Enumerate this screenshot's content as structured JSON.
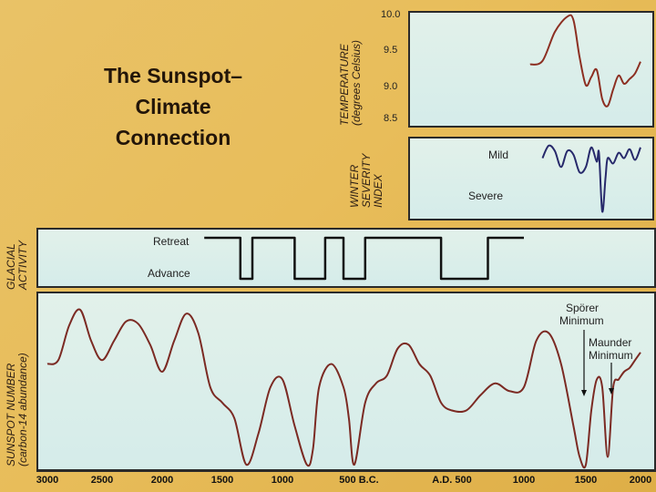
{
  "title_lines": [
    "The Sunspot–",
    "Climate",
    "Connection"
  ],
  "temperature": {
    "label_line1": "TEMPERATURE",
    "label_line2": "(degrees Celsius)",
    "ticks": [
      "10.0",
      "9.5",
      "9.0",
      "8.5"
    ],
    "color": "#8c2f22"
  },
  "winter": {
    "label_lines": [
      "WINTER",
      "SEVERITY",
      "INDEX"
    ],
    "mild": "Mild",
    "severe": "Severe",
    "color": "#27296b"
  },
  "glacial": {
    "label_line1": "GLACIAL",
    "label_line2": "ACTIVITY",
    "retreat": "Retreat",
    "advance": "Advance",
    "color": "#111111"
  },
  "sunspot": {
    "label_line1": "SUNSPOT NUMBER",
    "label_line2": "(carbon-14 abundance)",
    "annotations": [
      "Spörer",
      "Minimum",
      "Maunder",
      "Minimum"
    ],
    "color": "#7b2a23"
  },
  "x_axis_ticks": [
    "3000",
    "2500",
    "2000",
    "1500",
    "1000",
    "500 B.C.",
    "A.D. 500",
    "1000",
    "1500",
    "2000"
  ],
  "chart_data": {
    "type": "line",
    "x_axis": {
      "ticks": [
        "3000",
        "2500",
        "2000",
        "1500",
        "1000",
        "500 B.C.",
        "A.D. 500",
        "1000",
        "1500",
        "2000"
      ],
      "range_years": [
        -3000,
        2000
      ]
    },
    "series": [
      {
        "panel": "temperature",
        "units": "degrees Celsius",
        "ylim": [
          8.5,
          10.0
        ],
        "x_year": [
          1050,
          1150,
          1250,
          1350,
          1400,
          1450,
          1500,
          1550,
          1600,
          1650,
          1700,
          1750,
          1800,
          1850,
          1900,
          1950,
          2000
        ],
        "y": [
          9.28,
          9.33,
          9.75,
          9.97,
          9.92,
          9.38,
          8.98,
          9.1,
          9.2,
          8.78,
          8.68,
          8.92,
          9.12,
          9.0,
          9.07,
          9.15,
          9.32
        ]
      },
      {
        "panel": "winter_severity",
        "units": "index (Mild to Severe)",
        "ylim": [
          "Severe",
          "Mild"
        ],
        "x_year": [
          1150,
          1200,
          1250,
          1300,
          1350,
          1400,
          1450,
          1500,
          1550,
          1600,
          1620,
          1650,
          1680,
          1700,
          1750,
          1800,
          1850,
          1900,
          1950,
          2000
        ],
        "y_relative": [
          0.55,
          0.9,
          0.75,
          0.3,
          0.75,
          0.65,
          0.15,
          0.3,
          0.85,
          0.45,
          0.7,
          -0.95,
          0.0,
          0.55,
          0.4,
          0.7,
          0.55,
          0.8,
          0.5,
          0.85
        ]
      },
      {
        "panel": "glacial_activity",
        "levels": [
          "Retreat",
          "Advance"
        ],
        "intervals_advance_years": [
          [
            -1350,
            -1250
          ],
          [
            -900,
            -650
          ],
          [
            -500,
            -300
          ],
          [
            400,
            750
          ]
        ],
        "range_years": [
          -1650,
          1000
        ]
      },
      {
        "panel": "sunspot_number",
        "units": "carbon-14 abundance",
        "x_year": [
          -3000,
          -2900,
          -2800,
          -2700,
          -2600,
          -2500,
          -2400,
          -2300,
          -2200,
          -2100,
          -2000,
          -1900,
          -1800,
          -1700,
          -1600,
          -1500,
          -1400,
          -1300,
          -1200,
          -1100,
          -1000,
          -900,
          -800,
          -750,
          -700,
          -600,
          -500,
          -450,
          -400,
          -300,
          -200,
          -100,
          0,
          100,
          200,
          300,
          400,
          500,
          600,
          700,
          800,
          900,
          1000,
          1100,
          1200,
          1300,
          1400,
          1450,
          1500,
          1550,
          1600,
          1650,
          1700,
          1750,
          1800,
          1850,
          1900,
          1950,
          2000
        ],
        "y_relative": [
          0.3,
          0.35,
          0.8,
          1.0,
          0.6,
          0.35,
          0.6,
          0.85,
          0.82,
          0.55,
          0.2,
          0.6,
          0.95,
          0.7,
          0.0,
          -0.2,
          -0.4,
          -1.0,
          -0.6,
          0.0,
          0.1,
          -0.5,
          -1.0,
          -0.8,
          0.0,
          0.3,
          0.0,
          -0.4,
          -1.0,
          -0.2,
          0.05,
          0.15,
          0.5,
          0.55,
          0.3,
          0.15,
          -0.2,
          -0.3,
          -0.3,
          -0.1,
          0.05,
          -0.05,
          0.0,
          0.6,
          0.7,
          0.3,
          -0.5,
          -0.9,
          -1.0,
          -0.3,
          0.1,
          0.0,
          -0.9,
          0.0,
          0.1,
          0.2,
          0.25,
          0.35,
          0.45
        ]
      }
    ]
  }
}
